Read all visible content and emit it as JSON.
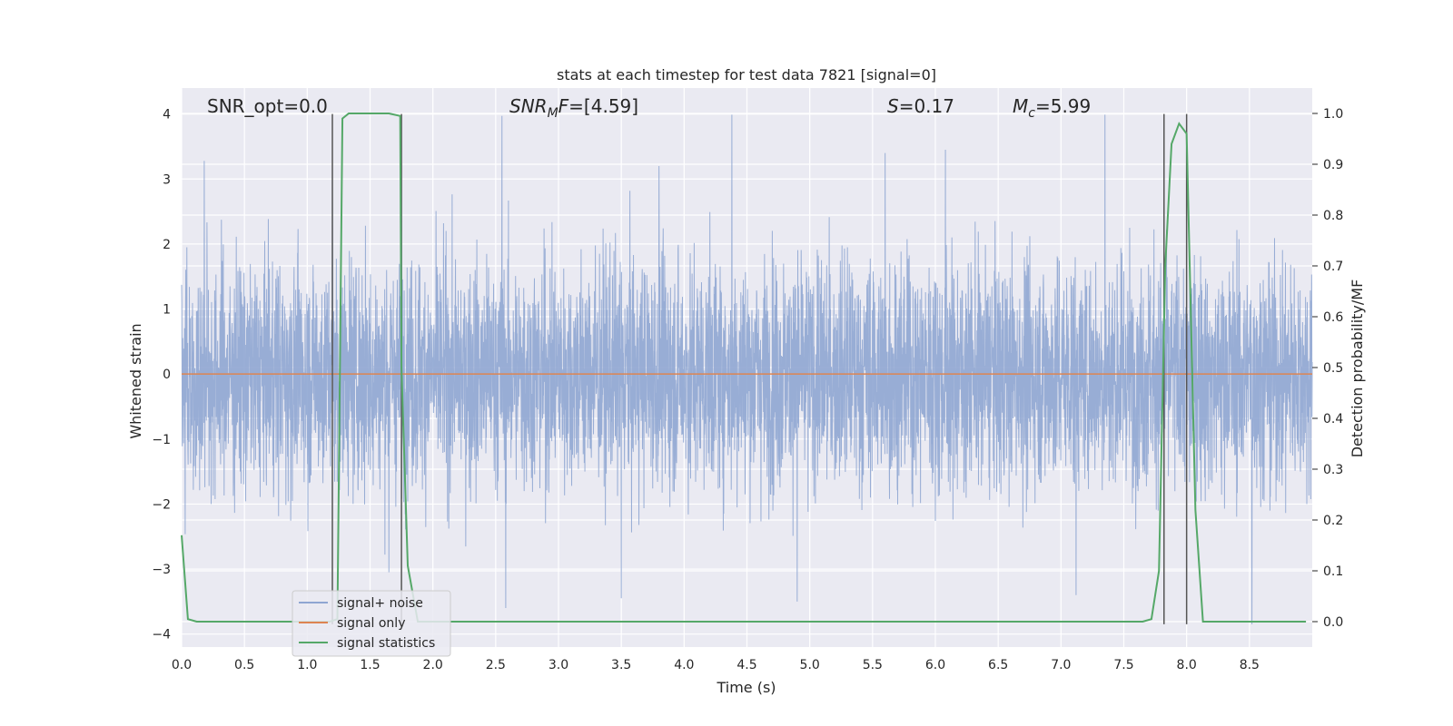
{
  "chart_data": {
    "type": "line",
    "title": "stats at each timestep for test data 7821 [signal=0]",
    "xlabel": "Time (s)",
    "ylabel_left": "Whitened strain",
    "ylabel_right": "Detection probability/MF",
    "xlim": [
      0.0,
      9.0
    ],
    "ylim_left": [
      -4.2,
      4.4
    ],
    "ylim_right": [
      -0.05,
      1.05
    ],
    "x_ticks": [
      "0.0",
      "0.5",
      "1.0",
      "1.5",
      "2.0",
      "2.5",
      "3.0",
      "3.5",
      "4.0",
      "4.5",
      "5.0",
      "5.5",
      "6.0",
      "6.5",
      "7.0",
      "7.5",
      "8.0",
      "8.5"
    ],
    "y_ticks_left": [
      "4",
      "3",
      "2",
      "1",
      "0",
      "−1",
      "−2",
      "−3",
      "−4"
    ],
    "y_ticks_right": [
      "1.0",
      "0.9",
      "0.8",
      "0.7",
      "0.6",
      "0.5",
      "0.4",
      "0.3",
      "0.2",
      "0.1",
      "0.0"
    ],
    "grid": true,
    "legend_position": "lower-left",
    "annotations": {
      "snr_opt": "SNR_opt=0.0",
      "snr_mf_base": "SNR",
      "snr_mf_sub": "M",
      "snr_mf_rest": "F=[4.59]",
      "s_italic": "S",
      "s_value": "=0.17",
      "mc_base": "M",
      "mc_sub": "c",
      "mc_value": "=5.99"
    },
    "series": [
      {
        "name": "signal+ noise",
        "axis": "left",
        "color": "#8fa6d2",
        "note": "dense whitened-strain noise trace, mostly within ±2.5 with spikes to about ±4",
        "amplitude_typical": 1.5,
        "peaks": [
          {
            "x": 0.18,
            "y": 3.28
          },
          {
            "x": 1.2,
            "y": 3.25
          },
          {
            "x": 1.75,
            "y": 3.25
          },
          {
            "x": 2.55,
            "y": 3.97
          },
          {
            "x": 3.8,
            "y": 3.2
          },
          {
            "x": 4.38,
            "y": 3.99
          },
          {
            "x": 5.6,
            "y": 3.4
          },
          {
            "x": 6.08,
            "y": 3.45
          },
          {
            "x": 7.35,
            "y": 3.99
          },
          {
            "x": 2.58,
            "y": -3.6
          },
          {
            "x": 4.9,
            "y": -3.5
          },
          {
            "x": 7.12,
            "y": -3.4
          },
          {
            "x": 8.52,
            "y": -3.85
          },
          {
            "x": 1.65,
            "y": -3.05
          },
          {
            "x": 3.5,
            "y": -3.45
          }
        ]
      },
      {
        "name": "signal only",
        "axis": "left",
        "color": "#dd8452",
        "x": [
          0.0,
          9.0
        ],
        "y": [
          0.0,
          0.0
        ]
      },
      {
        "name": "signal statistics",
        "axis": "right",
        "color": "#55a868",
        "x": [
          0.0,
          0.05,
          0.12,
          1.18,
          1.24,
          1.28,
          1.33,
          1.4,
          1.65,
          1.74,
          1.75,
          1.8,
          1.88,
          7.65,
          7.72,
          7.78,
          7.83,
          7.88,
          7.94,
          8.0,
          8.07,
          8.13,
          8.2,
          8.95
        ],
        "y": [
          0.17,
          0.005,
          0.0,
          0.0,
          0.005,
          0.99,
          1.0,
          1.0,
          1.0,
          0.995,
          0.5,
          0.11,
          0.0,
          0.0,
          0.005,
          0.1,
          0.7,
          0.94,
          0.98,
          0.96,
          0.22,
          0.0,
          0.0,
          0.0
        ]
      }
    ],
    "vertical_markers": [
      {
        "x": 1.2,
        "y_top": 4.0,
        "y_bottom": -3.85
      },
      {
        "x": 1.75,
        "y_top": 4.0,
        "y_bottom": -3.85
      },
      {
        "x": 7.82,
        "y_top": 4.0,
        "y_bottom": -3.85
      },
      {
        "x": 8.0,
        "y_top": 4.0,
        "y_bottom": -3.85
      }
    ],
    "colors": {
      "background": "#eaeaf2",
      "grid": "#ffffff",
      "text": "#262626",
      "marker_line": "#555555"
    }
  }
}
